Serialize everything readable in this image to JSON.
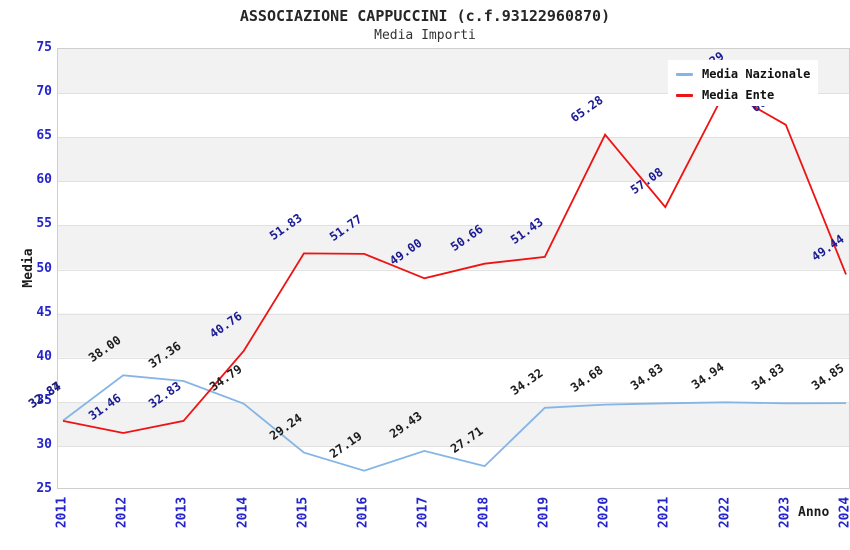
{
  "title": "ASSOCIAZIONE CAPPUCCINI (c.f.93122960870)",
  "subtitle": "Media Importi",
  "colors": {
    "nazionale_line": "#85b5e6",
    "ente_line": "#ee1212",
    "axis_tick_text": "#2424cc",
    "band_gray": "#f2f2f2",
    "gridline": "#e1e1e1",
    "plot_border": "#cfcfcf"
  },
  "chart_data": {
    "type": "line",
    "title": "ASSOCIAZIONE CAPPUCCINI (c.f.93122960870)",
    "subtitle": "Media Importi",
    "xlabel": "Anno",
    "ylabel": "Media",
    "categories": [
      "2011",
      "2012",
      "2013",
      "2014",
      "2015",
      "2016",
      "2017",
      "2018",
      "2019",
      "2020",
      "2021",
      "2022",
      "2023",
      "2024"
    ],
    "ylim": [
      25,
      75
    ],
    "yticks": [
      "75",
      "70",
      "65",
      "60",
      "55",
      "50",
      "45",
      "40",
      "35",
      "30",
      "25"
    ],
    "grid": "horizontal",
    "background_bands": "alternating gray/white every 5 units",
    "legend_position": "top-right",
    "series": [
      {
        "name": "Media Nazionale",
        "color": "#85b5e6",
        "label_color": "#1c1c1c",
        "values": [
          32.87,
          38.0,
          37.36,
          34.79,
          29.24,
          27.19,
          29.43,
          27.71,
          34.32,
          34.68,
          34.83,
          34.94,
          34.83,
          34.85
        ],
        "labels": [
          "32.87",
          "38.00",
          "37.36",
          "34.79",
          "29.24",
          "27.19",
          "29.43",
          "27.71",
          "34.32",
          "34.68",
          "34.83",
          "34.94",
          "34.83",
          "34.85"
        ]
      },
      {
        "name": "Media Ente",
        "color": "#ee1212",
        "label_color": "#1b1b94",
        "values": [
          32.84,
          31.46,
          32.83,
          40.76,
          51.83,
          51.77,
          49.0,
          50.66,
          51.43,
          65.28,
          57.08,
          70.29,
          66.41,
          49.44
        ],
        "labels": [
          "32.84",
          "31.46",
          "32.83",
          "40.76",
          "51.83",
          "51.77",
          "49.00",
          "50.66",
          "51.43",
          "65.28",
          "57.08",
          "70.29",
          "66.41",
          "49.44"
        ]
      }
    ]
  }
}
